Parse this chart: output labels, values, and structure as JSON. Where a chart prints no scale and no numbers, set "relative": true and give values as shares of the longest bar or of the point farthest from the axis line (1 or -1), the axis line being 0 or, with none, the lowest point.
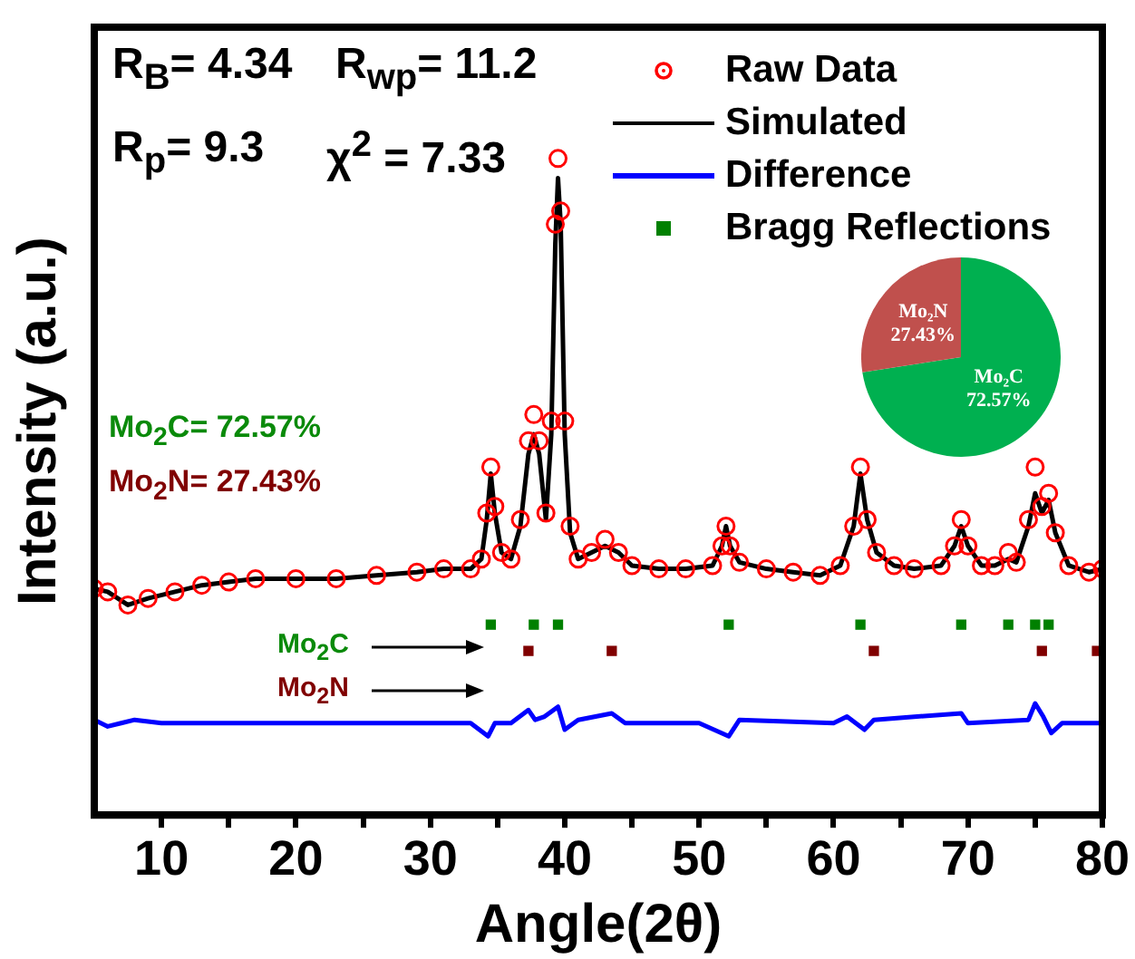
{
  "chart_data": [
    {
      "type": "line",
      "relative": true,
      "xlabel": "Angle(2θ)",
      "ylabel": "Intensity (a.u.)",
      "xlim": [
        5,
        80
      ],
      "xticks": [
        10,
        {
          "value": 15,
          "label": null
        },
        20,
        {
          "value": 25,
          "label": null
        },
        30,
        {
          "value": 35,
          "label": null
        },
        40,
        {
          "value": 45,
          "label": null
        },
        50,
        {
          "value": 55,
          "label": null
        },
        60,
        {
          "value": 65,
          "label": null
        },
        70,
        {
          "value": 75,
          "label": null
        },
        80
      ],
      "legend": "top right",
      "annotations": [
        "R$_{B}$= 4.34",
        "R$_{wp}$= 11.2",
        "R$_{p}$= 9.3",
        "χ$^{2}$ = 7.33",
        "Mo$_{2}$C= 72.57%",
        "Mo$_{2}$N= 27.43%",
        "Mo$_{2}$C",
        "Mo$_{2}$N"
      ],
      "series": [
        {
          "name": "Raw Data",
          "type": "scatter",
          "marker": "circle",
          "color": "#ff0000",
          "x": [
            5,
            6,
            7.5,
            9,
            11,
            13,
            15,
            17,
            20,
            23,
            26,
            29,
            31,
            33,
            33.8,
            34.2,
            34.5,
            34.8,
            35.3,
            36,
            36.7,
            37.3,
            37.7,
            38.1,
            38.6,
            39,
            39.3,
            39.5,
            39.7,
            40,
            40.4,
            41,
            42,
            43,
            44,
            45,
            47,
            49,
            51,
            51.7,
            52,
            52.3,
            53,
            55,
            57,
            59,
            60.5,
            61.5,
            62,
            62.5,
            63.2,
            64.5,
            66,
            68,
            69,
            69.5,
            70,
            71,
            72,
            73,
            73.6,
            74.5,
            75,
            75.5,
            76,
            76.5,
            77.5,
            79,
            80
          ],
          "values": [
            0.345,
            0.34,
            0.32,
            0.33,
            0.34,
            0.35,
            0.355,
            0.36,
            0.36,
            0.36,
            0.365,
            0.37,
            0.375,
            0.375,
            0.39,
            0.46,
            0.53,
            0.47,
            0.4,
            0.39,
            0.45,
            0.57,
            0.61,
            0.57,
            0.46,
            0.6,
            0.9,
            1.0,
            0.92,
            0.6,
            0.44,
            0.39,
            0.4,
            0.42,
            0.4,
            0.38,
            0.375,
            0.375,
            0.38,
            0.41,
            0.44,
            0.41,
            0.385,
            0.375,
            0.37,
            0.365,
            0.38,
            0.44,
            0.53,
            0.45,
            0.4,
            0.38,
            0.375,
            0.38,
            0.41,
            0.45,
            0.41,
            0.38,
            0.38,
            0.4,
            0.385,
            0.45,
            0.53,
            0.47,
            0.49,
            0.43,
            0.38,
            0.37,
            0.375
          ]
        },
        {
          "name": "Simulated",
          "type": "line",
          "marker": "none",
          "color": "#000000",
          "x": [
            5,
            6,
            7.5,
            9,
            11,
            13,
            15,
            17,
            20,
            23,
            26,
            29,
            31,
            33,
            33.8,
            34.2,
            34.5,
            34.8,
            35.3,
            36,
            36.7,
            37.3,
            37.7,
            38.1,
            38.6,
            39,
            39.3,
            39.5,
            39.7,
            40,
            40.4,
            41,
            42,
            43,
            44,
            45,
            47,
            49,
            51,
            51.7,
            52,
            52.3,
            53,
            55,
            57,
            59,
            60.5,
            61.5,
            62,
            62.5,
            63.2,
            64.5,
            66,
            68,
            69,
            69.5,
            70,
            71,
            72,
            73,
            73.6,
            74.5,
            75,
            75.5,
            76,
            76.5,
            77.5,
            79,
            80
          ],
          "values": [
            0.345,
            0.34,
            0.32,
            0.33,
            0.34,
            0.35,
            0.355,
            0.36,
            0.36,
            0.36,
            0.365,
            0.37,
            0.375,
            0.375,
            0.39,
            0.45,
            0.52,
            0.46,
            0.4,
            0.39,
            0.44,
            0.55,
            0.58,
            0.55,
            0.45,
            0.58,
            0.87,
            0.97,
            0.9,
            0.58,
            0.43,
            0.39,
            0.4,
            0.41,
            0.4,
            0.38,
            0.375,
            0.375,
            0.38,
            0.41,
            0.44,
            0.41,
            0.385,
            0.375,
            0.37,
            0.365,
            0.38,
            0.44,
            0.52,
            0.45,
            0.4,
            0.38,
            0.375,
            0.38,
            0.41,
            0.44,
            0.41,
            0.38,
            0.38,
            0.39,
            0.385,
            0.44,
            0.49,
            0.46,
            0.48,
            0.43,
            0.38,
            0.37,
            0.375
          ]
        },
        {
          "name": "Difference",
          "type": "line",
          "marker": "none",
          "color": "#0000ff",
          "x": [
            5,
            6,
            7,
            8,
            10,
            15,
            20,
            25,
            30,
            33,
            34.3,
            34.8,
            36,
            37.3,
            37.8,
            38.5,
            39.5,
            40,
            41,
            43.5,
            44.5,
            50,
            52.2,
            53,
            60,
            61,
            62.3,
            63,
            69.5,
            70,
            74.5,
            75,
            75.6,
            76.2,
            77,
            80
          ],
          "values": [
            0.145,
            0.135,
            0.14,
            0.145,
            0.14,
            0.14,
            0.14,
            0.14,
            0.14,
            0.14,
            0.12,
            0.14,
            0.14,
            0.16,
            0.145,
            0.15,
            0.165,
            0.13,
            0.145,
            0.155,
            0.14,
            0.14,
            0.12,
            0.145,
            0.14,
            0.15,
            0.13,
            0.145,
            0.155,
            0.14,
            0.145,
            0.17,
            0.15,
            0.125,
            0.14,
            0.14
          ]
        },
        {
          "name": "Bragg Reflections",
          "type": "scatter",
          "marker": "square",
          "color": "#008000",
          "x": [
            34.5,
            37.7,
            39.5,
            52.2,
            62.0,
            69.5,
            73.0,
            75.0,
            76.0
          ],
          "values": [
            0.29,
            0.29,
            0.29,
            0.29,
            0.29,
            0.29,
            0.29,
            0.29,
            0.29
          ]
        },
        {
          "type": "scatter",
          "marker": "square",
          "color": "#800000",
          "x": [
            37.3,
            43.5,
            63.0,
            75.5,
            79.6
          ],
          "values": [
            0.25,
            0.25,
            0.25,
            0.25,
            0.25
          ]
        }
      ]
    },
    {
      "type": "pie",
      "categories": [
        "Mo₂C",
        "Mo₂N"
      ],
      "values": [
        72.57,
        27.43
      ],
      "colors": [
        "#00b050",
        "#c0504d"
      ],
      "value_labels": [
        "72.57%",
        "27.43%"
      ]
    }
  ]
}
